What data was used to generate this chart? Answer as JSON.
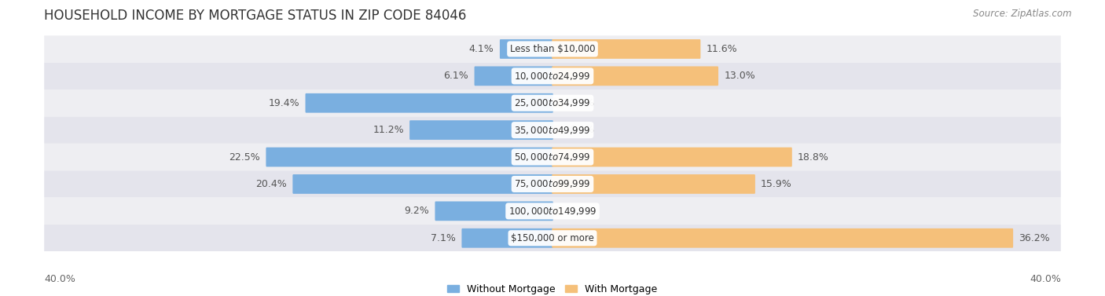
{
  "title": "HOUSEHOLD INCOME BY MORTGAGE STATUS IN ZIP CODE 84046",
  "source": "Source: ZipAtlas.com",
  "categories": [
    "Less than $10,000",
    "$10,000 to $24,999",
    "$25,000 to $34,999",
    "$35,000 to $49,999",
    "$50,000 to $74,999",
    "$75,000 to $99,999",
    "$100,000 to $149,999",
    "$150,000 or more"
  ],
  "without_mortgage": [
    4.1,
    6.1,
    19.4,
    11.2,
    22.5,
    20.4,
    9.2,
    7.1
  ],
  "with_mortgage": [
    11.6,
    13.0,
    0.0,
    0.0,
    18.8,
    15.9,
    0.0,
    36.2
  ],
  "max_val": 40.0,
  "color_without": "#7aafe0",
  "color_with": "#f5c07a",
  "axis_label_left": "40.0%",
  "axis_label_right": "40.0%",
  "legend_without": "Without Mortgage",
  "legend_with": "With Mortgage",
  "title_fontsize": 12,
  "source_fontsize": 8.5,
  "label_fontsize": 9,
  "category_fontsize": 8.5,
  "bar_height": 0.62,
  "row_bg_colors": [
    "#eeeef2",
    "#e4e4ec",
    "#eeeef2",
    "#e4e4ec",
    "#eeeef2",
    "#e4e4ec",
    "#eeeef2",
    "#e4e4ec"
  ]
}
